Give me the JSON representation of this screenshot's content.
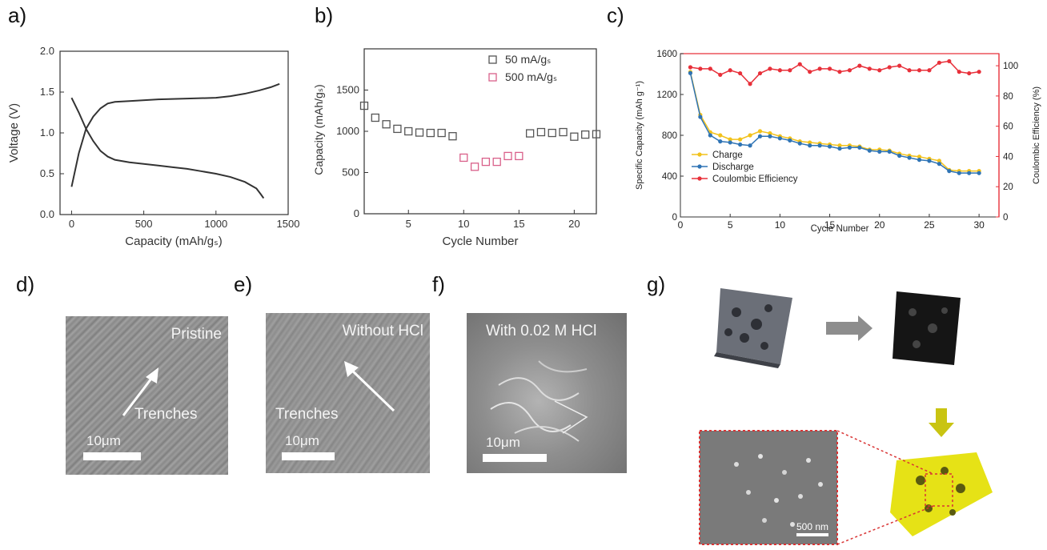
{
  "panel_labels": {
    "a": "a)",
    "b": "b)",
    "c": "c)",
    "d": "d)",
    "e": "e)",
    "f": "f)",
    "g": "g)"
  },
  "chart_data": [
    {
      "type": "line",
      "panel": "a",
      "xlabel": "Capacity (mAh/gₛ)",
      "ylabel": "Voltage (V)",
      "xlim": [
        -80,
        1500
      ],
      "ylim": [
        0.0,
        2.0
      ],
      "xticks": [
        "0",
        "500",
        "1000",
        "1500"
      ],
      "yticks": [
        "0.0",
        "0.5",
        "1.0",
        "1.5",
        "2.0"
      ],
      "grid": false,
      "series": [
        {
          "x": [
            0,
            50,
            100,
            150,
            200,
            250,
            300,
            400,
            500,
            600,
            700,
            800,
            900,
            1000,
            1100,
            1200,
            1280,
            1310,
            1330
          ],
          "values": [
            1.43,
            1.25,
            1.05,
            0.9,
            0.78,
            0.71,
            0.67,
            0.64,
            0.62,
            0.6,
            0.58,
            0.56,
            0.53,
            0.5,
            0.46,
            0.4,
            0.32,
            0.25,
            0.2
          ]
        },
        {
          "x": [
            0,
            50,
            100,
            150,
            200,
            250,
            300,
            400,
            600,
            800,
            1000,
            1100,
            1200,
            1300,
            1380,
            1440
          ],
          "values": [
            0.34,
            0.75,
            1.05,
            1.2,
            1.3,
            1.36,
            1.38,
            1.39,
            1.41,
            1.42,
            1.43,
            1.45,
            1.48,
            1.52,
            1.56,
            1.6
          ]
        }
      ]
    },
    {
      "type": "scatter",
      "panel": "b",
      "xlabel": "Cycle Number",
      "ylabel": "Capacity (mAh/gₛ)",
      "xlim": [
        1,
        22
      ],
      "ylim": [
        0,
        2000
      ],
      "xticks": [
        "5",
        "10",
        "15",
        "20"
      ],
      "yticks": [
        "0",
        "500",
        "1000",
        "1500"
      ],
      "legend_position": "top-right",
      "grid": false,
      "series": [
        {
          "name": "50 mA/gₛ",
          "color": "#555555",
          "x": [
            1,
            2,
            3,
            4,
            5,
            6,
            7,
            8,
            9,
            16,
            17,
            18,
            19,
            20,
            21,
            22
          ],
          "values": [
            1310,
            1165,
            1085,
            1030,
            1000,
            985,
            980,
            980,
            940,
            975,
            990,
            980,
            990,
            935,
            960,
            965
          ]
        },
        {
          "name": "500 mA/gₛ",
          "color": "#d9608a",
          "x": [
            10,
            11,
            12,
            13,
            14,
            15
          ],
          "values": [
            680,
            570,
            630,
            630,
            700,
            700
          ]
        }
      ]
    },
    {
      "type": "line",
      "panel": "c",
      "xlabel": "Cycle Number",
      "ylabel": "Specific Capacity (mAh g⁻¹)",
      "ylabel_right": "Coulombic Efficiency (%)",
      "xlim": [
        0,
        32
      ],
      "ylim": [
        0,
        1600
      ],
      "ylim_right": [
        0,
        108
      ],
      "xticks": [
        "0",
        "5",
        "10",
        "15",
        "20",
        "25",
        "30"
      ],
      "yticks": [
        "0",
        "400",
        "800",
        "1200",
        "1600"
      ],
      "yticks_right": [
        "0",
        "20",
        "40",
        "60",
        "80",
        "100"
      ],
      "legend_position": "bottom-left",
      "grid": false,
      "x": [
        1,
        2,
        3,
        4,
        5,
        6,
        7,
        8,
        9,
        10,
        11,
        12,
        13,
        14,
        15,
        16,
        17,
        18,
        19,
        20,
        21,
        22,
        23,
        24,
        25,
        26,
        27,
        28,
        29,
        30
      ],
      "series": [
        {
          "name": "Charge",
          "color": "#f2c21b",
          "axis": "left",
          "values": [
            1420,
            1000,
            830,
            800,
            760,
            760,
            800,
            840,
            820,
            790,
            770,
            740,
            730,
            720,
            710,
            700,
            700,
            690,
            660,
            660,
            650,
            620,
            600,
            590,
            570,
            550,
            460,
            450,
            450,
            450
          ]
        },
        {
          "name": "Discharge",
          "color": "#2f74b5",
          "axis": "left",
          "values": [
            1410,
            980,
            800,
            740,
            730,
            710,
            700,
            790,
            790,
            770,
            750,
            720,
            700,
            700,
            690,
            670,
            680,
            680,
            650,
            640,
            640,
            600,
            580,
            560,
            550,
            520,
            450,
            430,
            430,
            430
          ]
        },
        {
          "name": "Coulombic Efficiency",
          "color": "#e8303a",
          "axis": "right",
          "values": [
            99,
            98,
            98,
            94,
            97,
            95,
            88,
            95,
            98,
            97,
            97,
            101,
            96,
            98,
            98,
            96,
            97,
            100,
            98,
            97,
            99,
            100,
            97,
            97,
            97,
            102,
            103,
            96,
            95,
            96
          ]
        }
      ]
    }
  ],
  "images": {
    "d": {
      "label": "Pristine",
      "trench_label": "Trenches",
      "scale": "10μm"
    },
    "e": {
      "label": "Without HCl",
      "trench_label": "Trenches",
      "scale": "10μm"
    },
    "f": {
      "label": "With 0.02 M HCl",
      "scale": "10μm"
    },
    "g": {
      "scale": "500 nm"
    }
  }
}
